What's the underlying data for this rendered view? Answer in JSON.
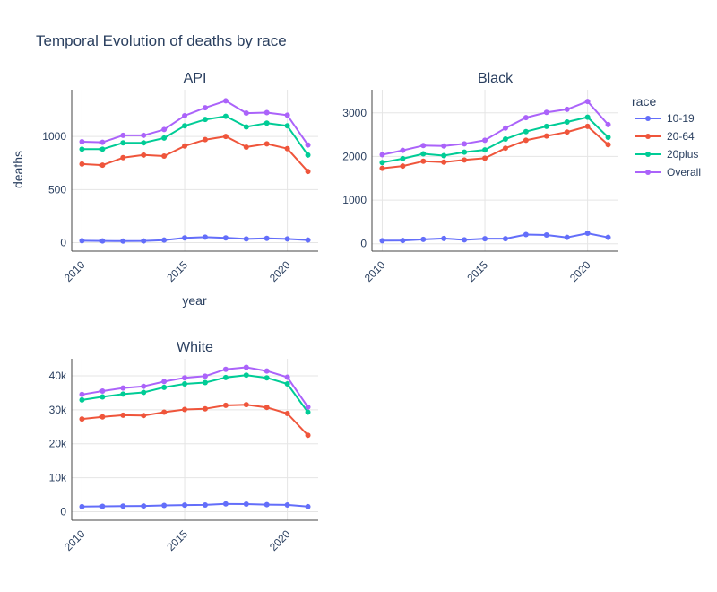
{
  "figure": {
    "title": "Temporal Evolution of deaths by race",
    "legend_title": "race",
    "x_axis_label": "year",
    "y_axis_label": "deaths"
  },
  "chart_data": {
    "type": "line",
    "mode": "lines+markers",
    "legend_position": "top-right",
    "grid": true,
    "series_styles": [
      {
        "name": "10-19",
        "color": "#636efa"
      },
      {
        "name": "20-64",
        "color": "#ef553b"
      },
      {
        "name": "20plus",
        "color": "#00cc96"
      },
      {
        "name": "Overall",
        "color": "#ab63fa"
      }
    ],
    "panels": [
      {
        "title": "API",
        "x": [
          2010,
          2011,
          2012,
          2013,
          2014,
          2015,
          2016,
          2017,
          2018,
          2019,
          2020,
          2021
        ],
        "xlim": [
          2009.5,
          2021.5
        ],
        "xticks": [
          2010,
          2015,
          2020
        ],
        "xtick_labels": [
          "2010",
          "2015",
          "2020"
        ],
        "ylim": [
          -80,
          1440
        ],
        "yticks": [
          0,
          500,
          1000
        ],
        "ytick_labels": [
          "0",
          "500",
          "1000"
        ],
        "series": [
          {
            "name": "10-19",
            "values": [
              18,
              16,
              15,
              16,
              24,
              45,
              52,
              45,
              35,
              40,
              35,
              25
            ]
          },
          {
            "name": "20-64",
            "values": [
              740,
              730,
              800,
              825,
              815,
              910,
              970,
              1000,
              900,
              930,
              885,
              670
            ]
          },
          {
            "name": "20plus",
            "values": [
              880,
              880,
              940,
              940,
              985,
              1100,
              1160,
              1190,
              1090,
              1125,
              1100,
              825
            ]
          },
          {
            "name": "Overall",
            "values": [
              950,
              945,
              1010,
              1010,
              1065,
              1195,
              1270,
              1335,
              1220,
              1225,
              1200,
              920
            ]
          }
        ]
      },
      {
        "title": "Black",
        "x": [
          2010,
          2011,
          2012,
          2013,
          2014,
          2015,
          2016,
          2017,
          2018,
          2019,
          2020,
          2021
        ],
        "xlim": [
          2009.5,
          2021.5
        ],
        "xticks": [
          2010,
          2015,
          2020
        ],
        "xtick_labels": [
          "2010",
          "2015",
          "2020"
        ],
        "ylim": [
          -170,
          3530
        ],
        "yticks": [
          0,
          1000,
          2000,
          3000
        ],
        "ytick_labels": [
          "0",
          "1000",
          "2000",
          "3000"
        ],
        "series": [
          {
            "name": "10-19",
            "values": [
              70,
              75,
              100,
              120,
              90,
              115,
              115,
              210,
              200,
              145,
              240,
              145
            ]
          },
          {
            "name": "20-64",
            "values": [
              1730,
              1780,
              1890,
              1870,
              1920,
              1960,
              2190,
              2370,
              2470,
              2560,
              2690,
              2270
            ]
          },
          {
            "name": "20plus",
            "values": [
              1860,
              1950,
              2060,
              2020,
              2100,
              2150,
              2400,
              2570,
              2690,
              2790,
              2900,
              2440
            ]
          },
          {
            "name": "Overall",
            "values": [
              2040,
              2140,
              2250,
              2240,
              2290,
              2370,
              2650,
              2890,
              3010,
              3080,
              3260,
              2730
            ]
          }
        ]
      },
      {
        "title": "White",
        "x": [
          2010,
          2011,
          2012,
          2013,
          2014,
          2015,
          2016,
          2017,
          2018,
          2019,
          2020,
          2021
        ],
        "xlim": [
          2009.5,
          2021.5
        ],
        "xticks": [
          2010,
          2015,
          2020
        ],
        "xtick_labels": [
          "2010",
          "2015",
          "2020"
        ],
        "ylim": [
          -2500,
          45000
        ],
        "yticks": [
          0,
          10000,
          20000,
          30000,
          40000
        ],
        "ytick_labels": [
          "0",
          "10k",
          "20k",
          "30k",
          "40k"
        ],
        "series": [
          {
            "name": "10-19",
            "values": [
              1500,
              1600,
              1650,
              1700,
              1850,
              1950,
              2000,
              2300,
              2250,
              2100,
              2000,
              1500
            ]
          },
          {
            "name": "20-64",
            "values": [
              27300,
              27900,
              28400,
              28300,
              29300,
              30100,
              30300,
              31300,
              31500,
              30700,
              28900,
              22500
            ]
          },
          {
            "name": "20plus",
            "values": [
              32900,
              33800,
              34600,
              35100,
              36600,
              37600,
              38000,
              39500,
              40200,
              39400,
              37600,
              29300
            ]
          },
          {
            "name": "Overall",
            "values": [
              34500,
              35500,
              36400,
              36900,
              38300,
              39400,
              39900,
              41900,
              42500,
              41400,
              39600,
              30800
            ]
          }
        ]
      }
    ]
  }
}
